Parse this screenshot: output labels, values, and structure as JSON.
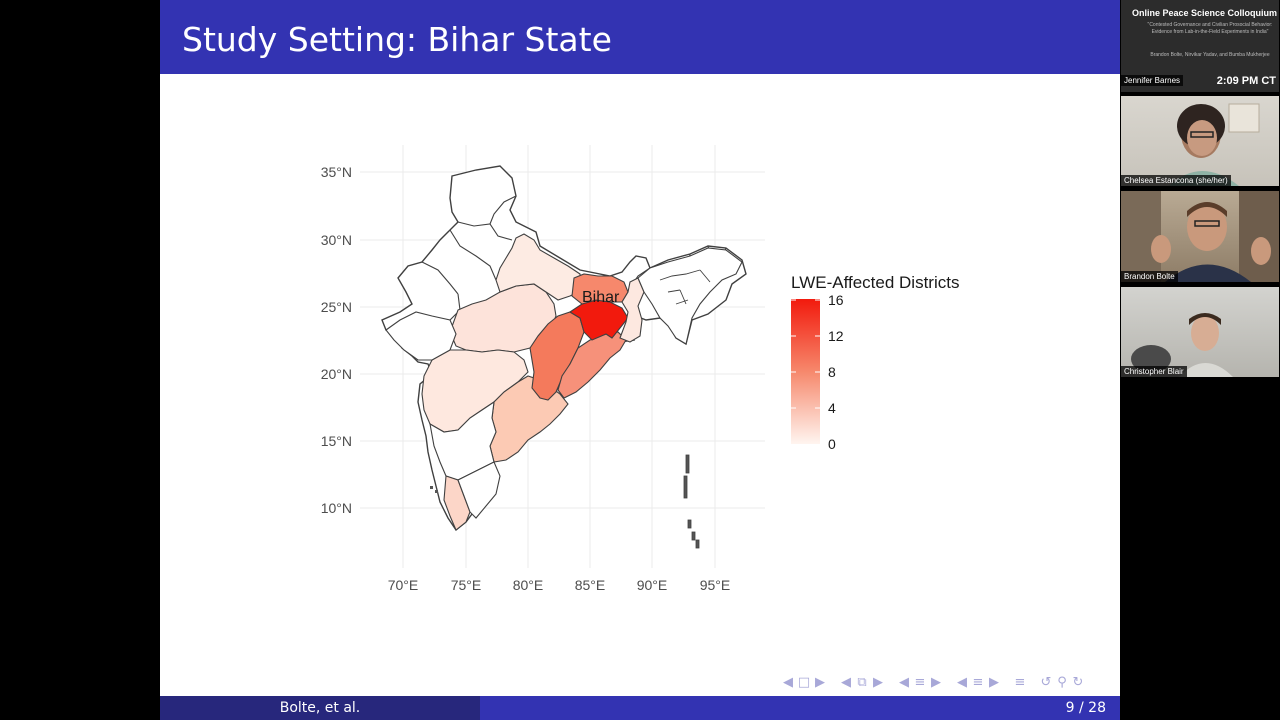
{
  "slide": {
    "title": "Study Setting: Bihar State",
    "footer_left": "Bolte, et al.",
    "page_indicator": "9 / 28"
  },
  "map": {
    "y_ticks": [
      "35°N",
      "30°N",
      "25°N",
      "20°N",
      "15°N",
      "10°N"
    ],
    "x_ticks": [
      "70°E",
      "75°E",
      "80°E",
      "85°E",
      "90°E",
      "95°E"
    ],
    "state_label": "Bihar",
    "legend_title": "LWE-Affected Districts",
    "legend_ticks": [
      "16",
      "12",
      "8",
      "4",
      "0"
    ],
    "colors": {
      "high": "#f21a0d",
      "low": "#fff5f0",
      "border": "#404040"
    }
  },
  "chart_data": {
    "type": "choropleth",
    "title": "",
    "legend_title": "LWE-Affected Districts",
    "scale_range": [
      0,
      16
    ],
    "x_ticks": [
      "70°E",
      "75°E",
      "80°E",
      "85°E",
      "90°E",
      "95°E"
    ],
    "y_ticks": [
      "35°N",
      "30°N",
      "25°N",
      "20°N",
      "15°N",
      "10°N"
    ],
    "highlighted_label": "Bihar"
  },
  "nav": {
    "icons": [
      "nav-left-arrow",
      "nav-frame",
      "nav-right-arrow",
      "nav-left-arrow",
      "nav-frames",
      "nav-right-arrow",
      "nav-left-arrow",
      "nav-section",
      "nav-right-arrow",
      "nav-left-arrow",
      "nav-subsection",
      "nav-right-arrow",
      "nav-doc",
      "nav-back",
      "nav-search",
      "nav-forward"
    ]
  },
  "video": {
    "tile1": {
      "title": "Online Peace Science Colloquium",
      "subtitle": "\"Contested Governance and Civilian Prosocial Behavior: Evidence from Lab-in-the-Field Experiments in India\"",
      "authors": "Brandon Bolte, Nirvikar Yadav, and Bumba Mukherjee",
      "name": "Jennifer Barnes",
      "time": "2:09 PM CT"
    },
    "tile2": {
      "name": "Chelsea Estancona (she/her)"
    },
    "tile3": {
      "name": "Brandon Bolte"
    },
    "tile4": {
      "name": "Christopher Blair"
    }
  }
}
